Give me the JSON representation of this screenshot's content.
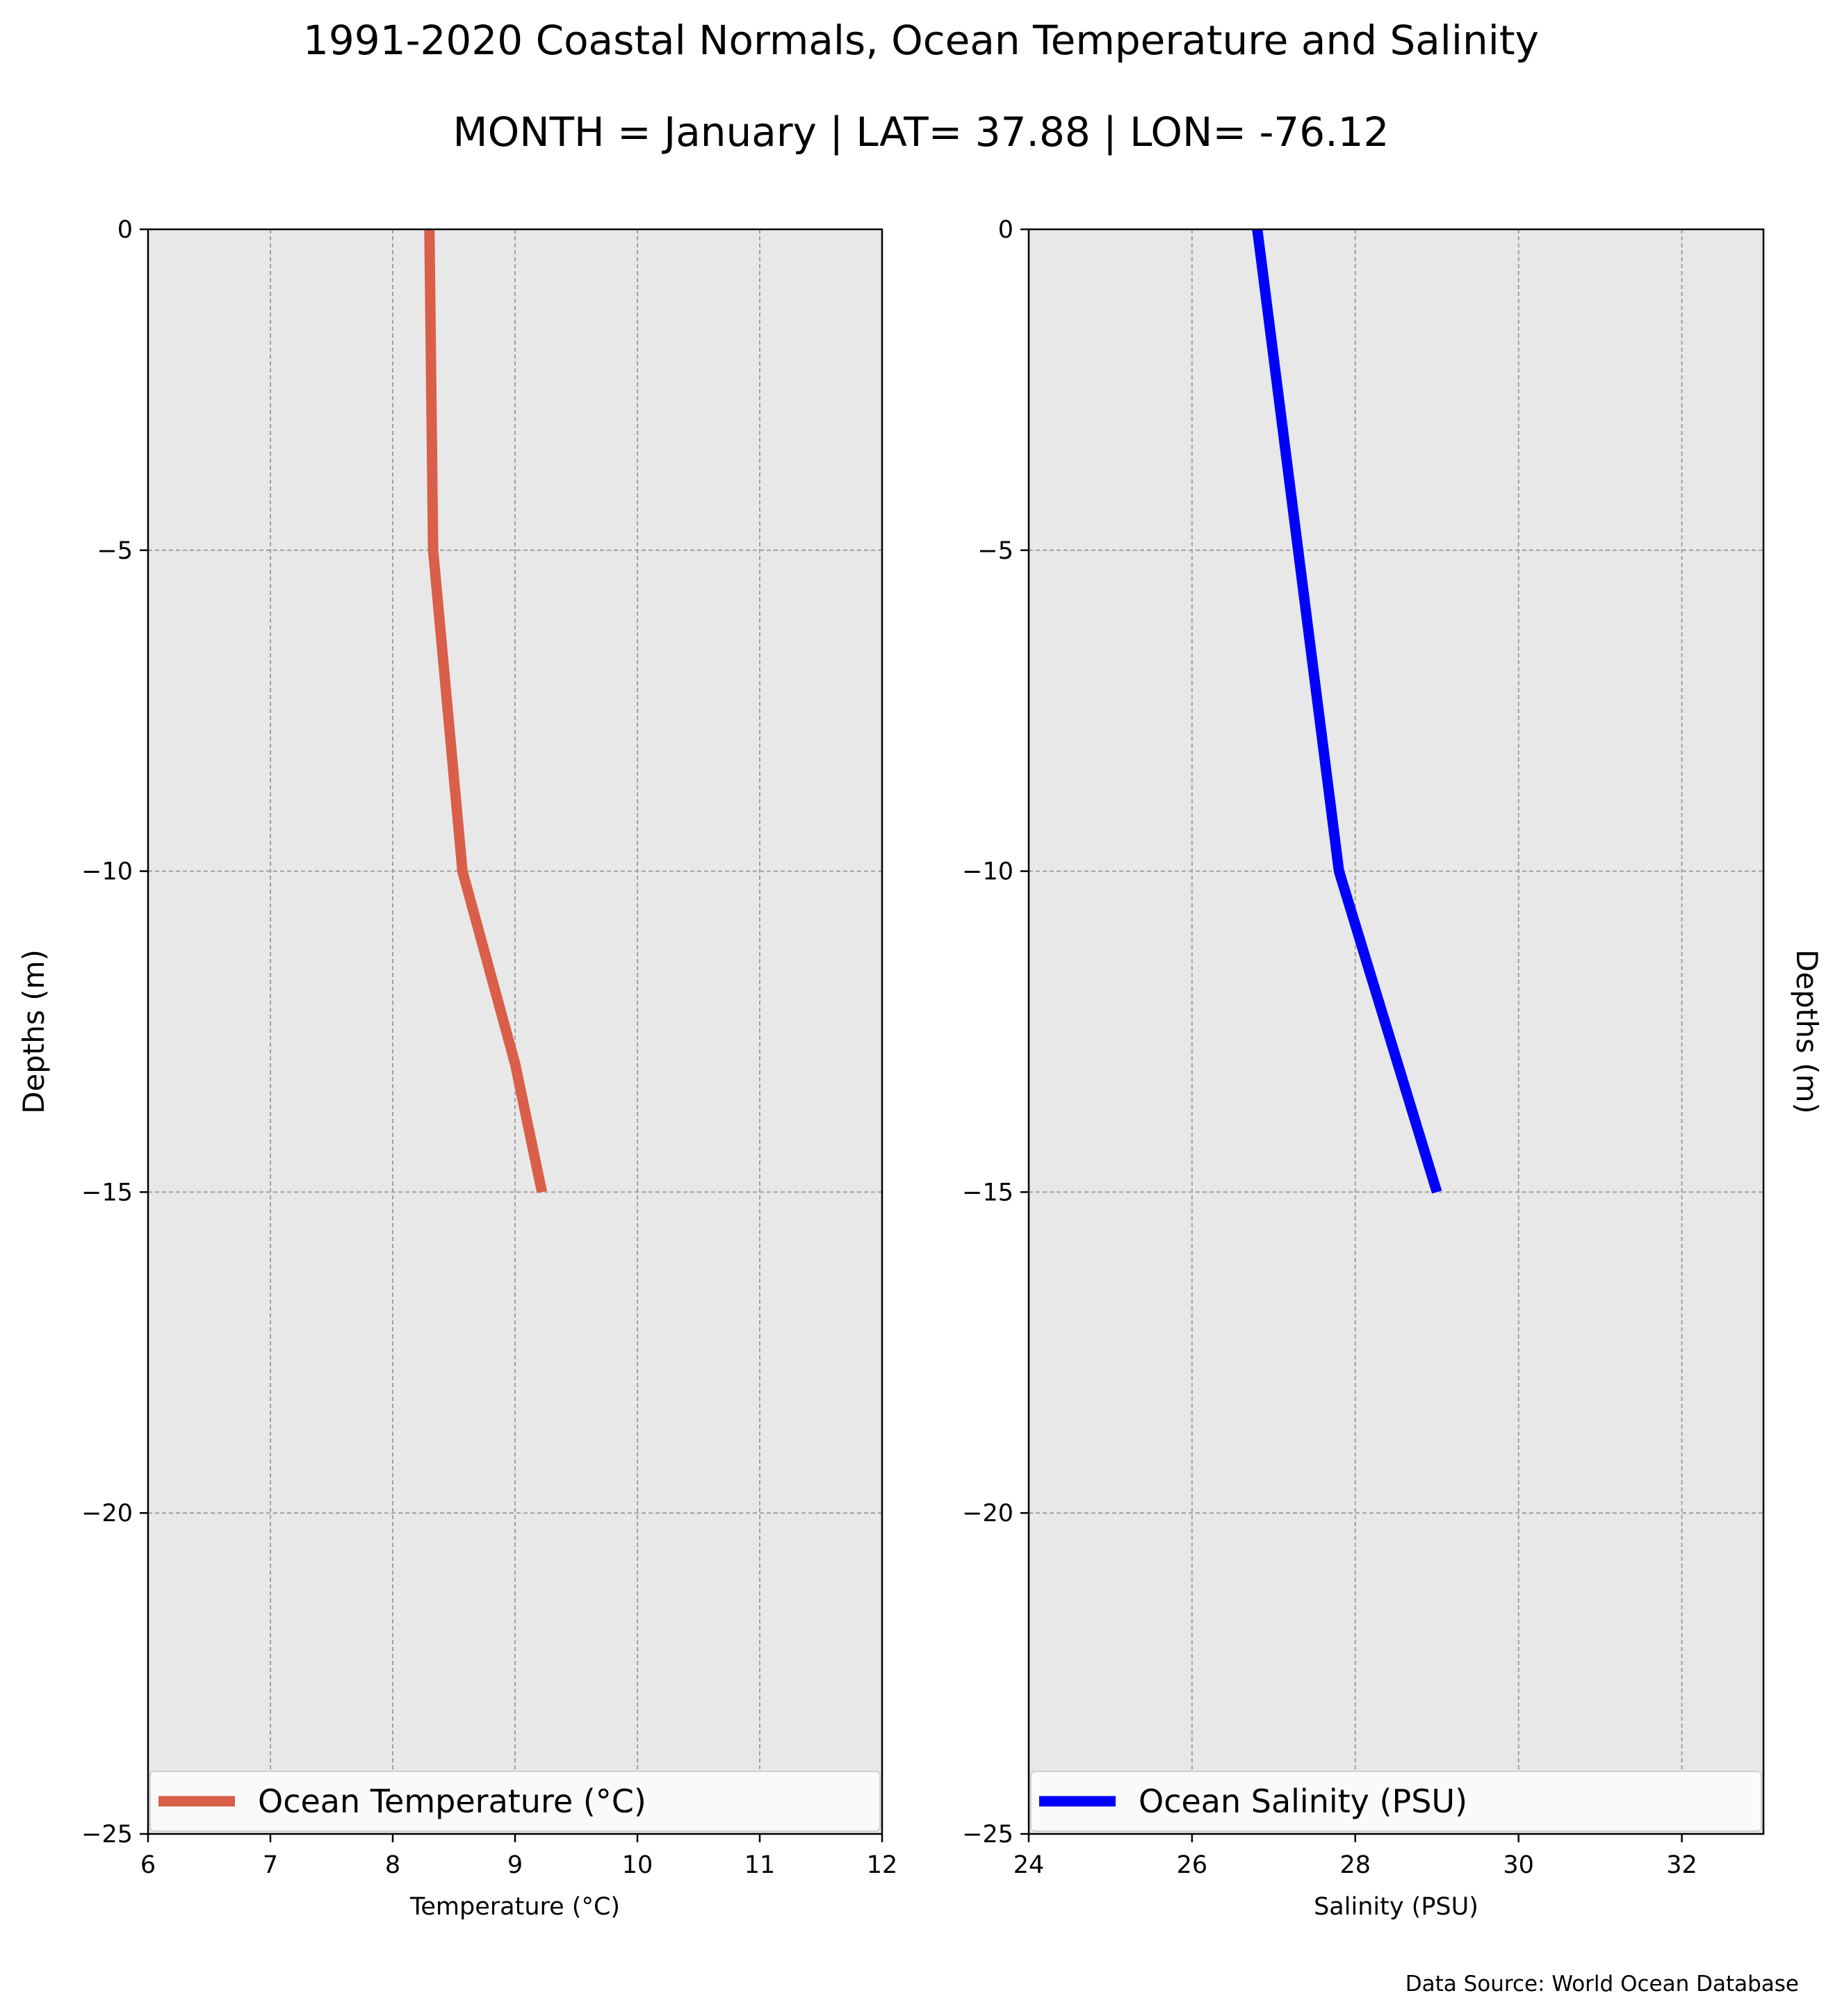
{
  "header": {
    "title": "1991-2020 Coastal Normals, Ocean Temperature and Salinity",
    "subtitle": "MONTH = January | LAT= 37.88 | LON= -76.12"
  },
  "footer": {
    "source": "Data Source: World Ocean Database"
  },
  "chart_data": [
    {
      "type": "line",
      "xlabel": "Temperature ($^\\circ$C)",
      "xlabel_display": "Temperature (°C)",
      "ylabel": "Depths (m)",
      "xlim": [
        6,
        12
      ],
      "ylim": [
        -25,
        0
      ],
      "xticks": [
        6,
        7,
        8,
        9,
        10,
        11,
        12
      ],
      "yticks": [
        0,
        -5,
        -10,
        -15,
        -20,
        -25
      ],
      "ytick_labels": [
        "0",
        "−5",
        "−10",
        "−15",
        "−20",
        "−25"
      ],
      "grid": true,
      "legend": "bottom",
      "series": [
        {
          "name": "Ocean Temperature (°C)",
          "color": "#d95f4a",
          "x": [
            8.3,
            8.33,
            8.57,
            9.0,
            9.22
          ],
          "y": [
            0,
            -5,
            -10,
            -13,
            -15
          ]
        }
      ]
    },
    {
      "type": "line",
      "xlabel": "Salinity (PSU)",
      "ylabel": "Depths (m)",
      "xlim": [
        24,
        33
      ],
      "ylim": [
        -25,
        0
      ],
      "xticks": [
        24,
        26,
        28,
        30,
        32
      ],
      "yticks": [
        0,
        -5,
        -10,
        -15,
        -20,
        -25
      ],
      "ytick_labels": [
        "0",
        "−5",
        "−10",
        "−15",
        "−20",
        "−25"
      ],
      "grid": true,
      "legend": "bottom",
      "series": [
        {
          "name": "Ocean Salinity (PSU)",
          "color": "#0000ff",
          "x": [
            26.8,
            27.3,
            27.8,
            29.0
          ],
          "y": [
            0,
            -5,
            -10,
            -15
          ]
        }
      ]
    }
  ]
}
